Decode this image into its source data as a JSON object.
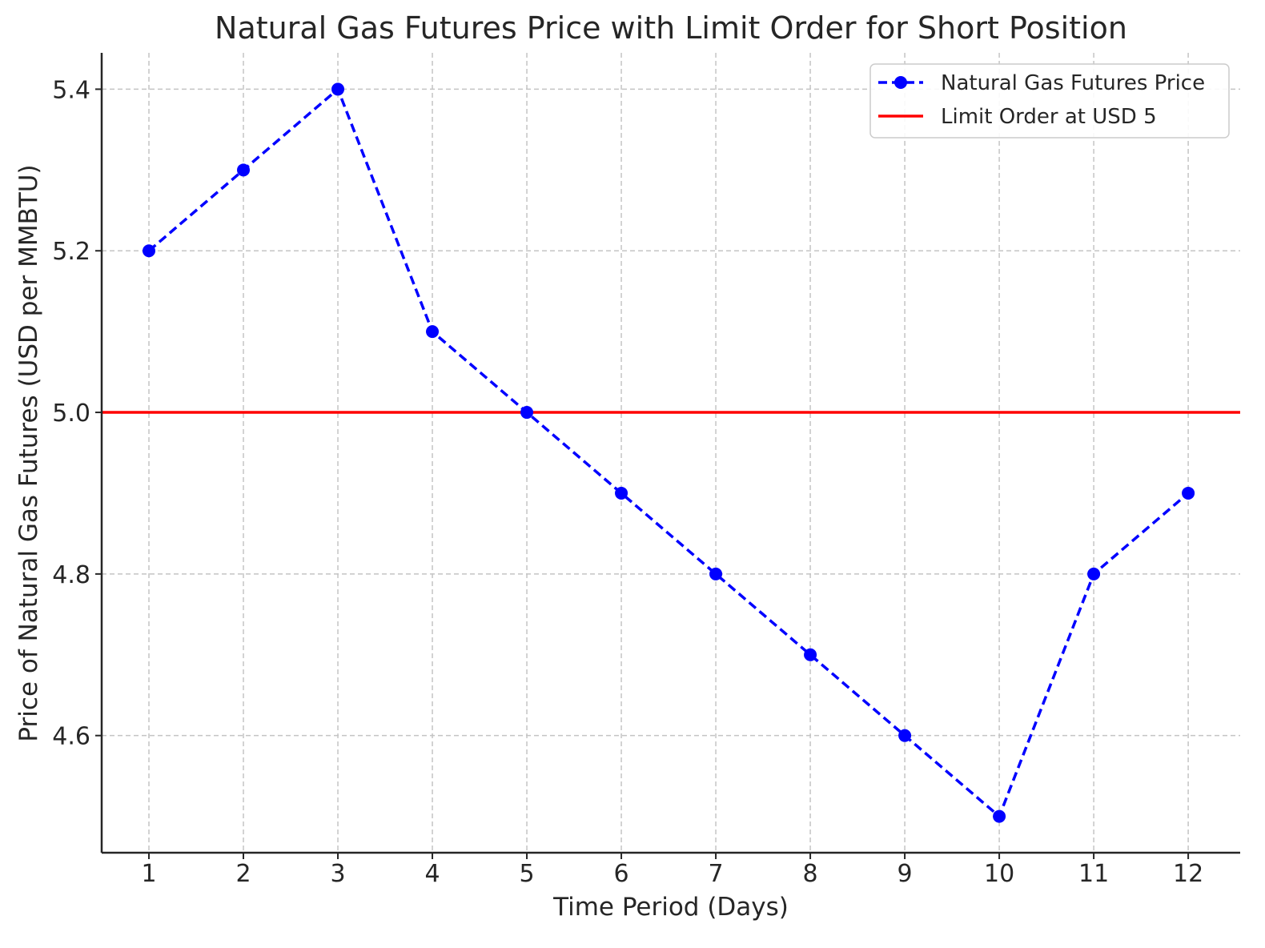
{
  "chart_data": {
    "type": "line",
    "title": "Natural Gas Futures Price with Limit Order for Short Position",
    "xlabel": "Time Period (Days)",
    "ylabel": "Price of Natural Gas Futures (USD per MMBTU)",
    "x": [
      1,
      2,
      3,
      4,
      5,
      6,
      7,
      8,
      9,
      10,
      11,
      12
    ],
    "xlim": [
      0.5,
      12.55
    ],
    "ylim": [
      4.455,
      5.445
    ],
    "xticks": [
      "1",
      "2",
      "3",
      "4",
      "5",
      "6",
      "7",
      "8",
      "9",
      "10",
      "11",
      "12"
    ],
    "yticks": [
      "4.6",
      "4.8",
      "5.0",
      "5.2",
      "5.4"
    ],
    "ytick_values": [
      4.6,
      4.8,
      5.0,
      5.2,
      5.4
    ],
    "grid": true,
    "legend_position": "top-right",
    "series": [
      {
        "name": "Natural Gas Futures Price",
        "values": [
          5.2,
          5.3,
          5.4,
          5.1,
          5.0,
          4.9,
          4.8,
          4.7,
          4.6,
          4.5,
          4.8,
          4.9
        ],
        "color": "#0000ff",
        "style": "dashed",
        "marker": "circle"
      }
    ],
    "hlines": [
      {
        "name": "Limit Order at USD 5",
        "value": 5.0,
        "color": "#ff0000",
        "style": "solid"
      }
    ]
  }
}
